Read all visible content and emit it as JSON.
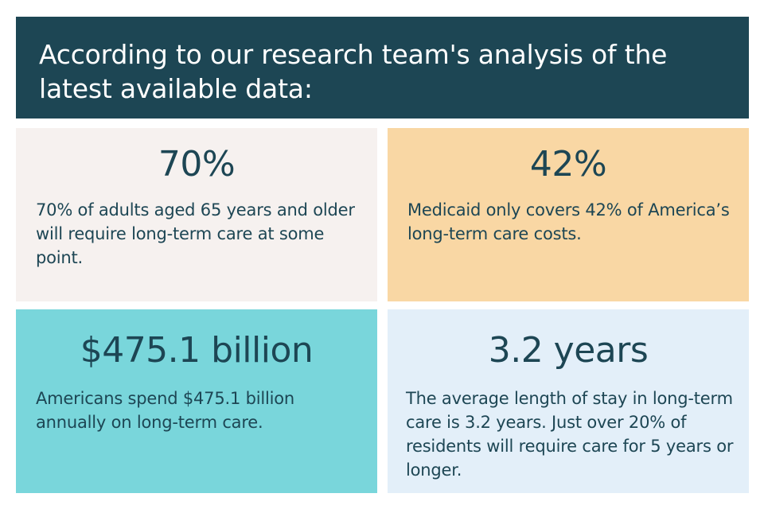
{
  "header": {
    "title": "According to our research team's analysis of the latest available data:"
  },
  "colors": {
    "header_bg": "#1d4654",
    "text": "#1d4654",
    "card1_bg": "#f6f1ef",
    "card2_bg": "#f9d7a4",
    "card3_bg": "#79d6db",
    "card4_bg": "#e3eff9"
  },
  "cards": [
    {
      "stat": "70%",
      "text": "70% of adults aged 65 years and older will require long-term care at some point."
    },
    {
      "stat": "42%",
      "text": "Medicaid only covers 42% of America’s long-term care costs."
    },
    {
      "stat": "$475.1 billion",
      "text": "Americans spend $475.1 billion annually on long-term care."
    },
    {
      "stat": "3.2 years",
      "text": "The average length of stay in long-term care is 3.2 years. Just over 20% of residents will require care for 5 years or longer."
    }
  ]
}
